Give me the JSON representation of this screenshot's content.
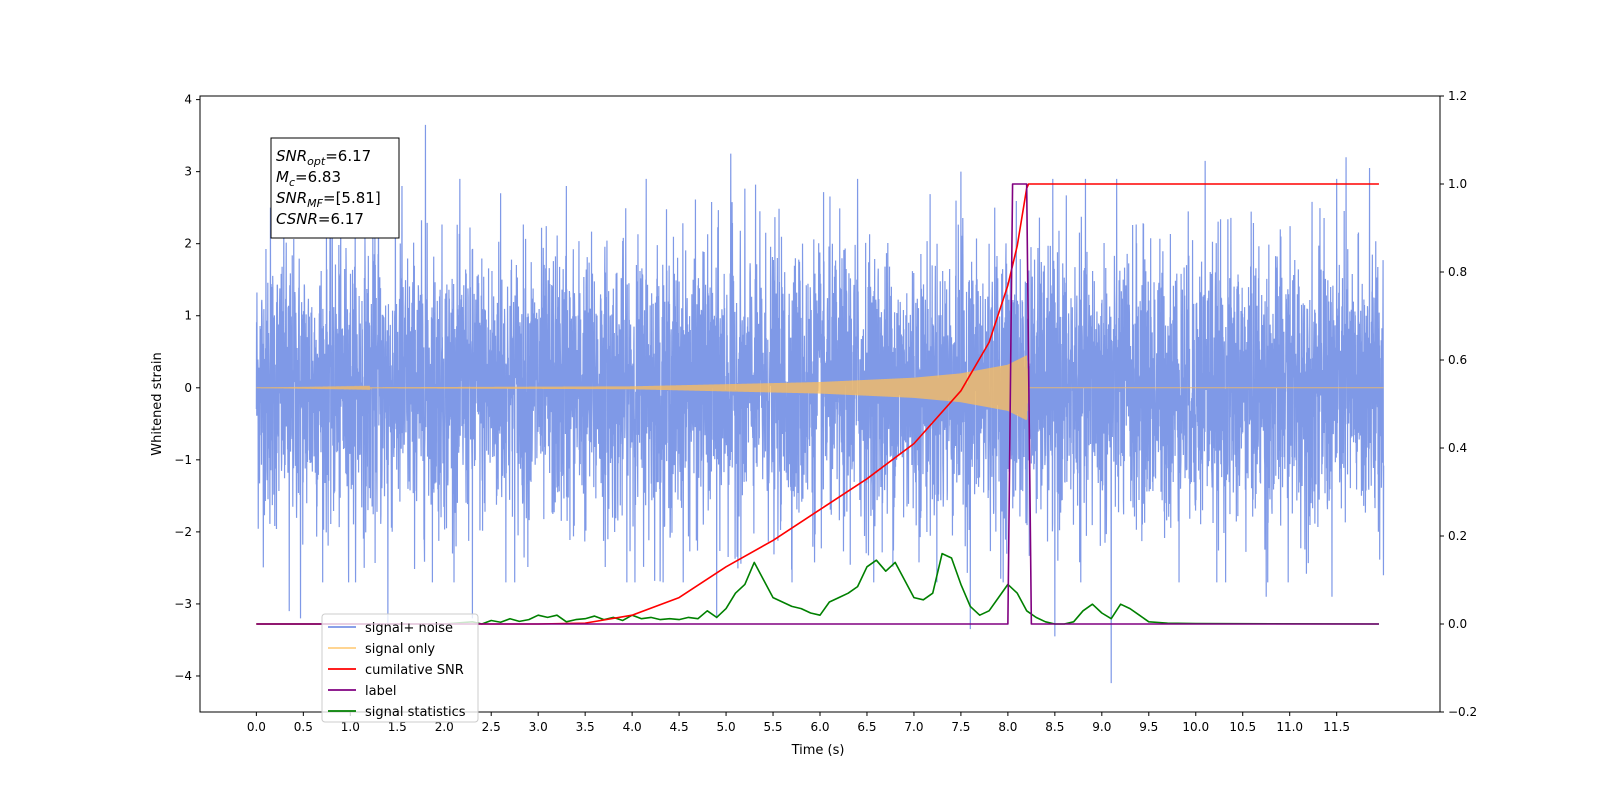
{
  "chart_data": {
    "type": "line",
    "xlabel": "Time (s)",
    "ylabel": "Whitened strain",
    "xlim": [
      -0.6,
      12.6
    ],
    "ylim": [
      -4.5,
      4.05
    ],
    "ylim_right": [
      -0.2,
      1.2
    ],
    "x_ticks": [
      0.0,
      0.5,
      1.0,
      1.5,
      2.0,
      2.5,
      3.0,
      3.5,
      4.0,
      4.5,
      5.0,
      5.5,
      6.0,
      6.5,
      7.0,
      7.5,
      8.0,
      8.5,
      9.0,
      9.5,
      10.0,
      10.5,
      11.0,
      11.5
    ],
    "x_tick_labels": [
      "0.0",
      "0.5",
      "1.0",
      "1.5",
      "2.0",
      "2.5",
      "3.0",
      "3.5",
      "4.0",
      "4.5",
      "5.0",
      "5.5",
      "6.0",
      "6.5",
      "7.0",
      "7.5",
      "8.0",
      "8.5",
      "9.0",
      "9.5",
      "10.0",
      "10.5",
      "11.0",
      "11.5"
    ],
    "y_ticks": [
      -4,
      -3,
      -2,
      -1,
      0,
      1,
      2,
      3,
      4
    ],
    "y_tick_labels": [
      "−4",
      "−3",
      "−2",
      "−1",
      "0",
      "1",
      "2",
      "3",
      "4"
    ],
    "y2_ticks": [
      -0.2,
      0.0,
      0.2,
      0.4,
      0.6,
      0.8,
      1.0,
      1.2
    ],
    "y2_tick_labels": [
      "−0.2",
      "0.0",
      "0.2",
      "0.4",
      "0.6",
      "0.8",
      "1.0",
      "1.2"
    ],
    "grid": false,
    "legend_position": "lower-left",
    "annotation": {
      "lines": [
        {
          "sym": "SNR",
          "sub": "opt",
          "rest": "=6.17"
        },
        {
          "sym": "M",
          "sub": "c",
          "rest": "=6.83"
        },
        {
          "sym": "SNR",
          "sub": "MF",
          "rest": "=[5.81]"
        },
        {
          "sym": "CSNR",
          "sub": "",
          "rest": "=6.17"
        }
      ]
    },
    "series": [
      {
        "name": "signal+ noise",
        "color": "#7893e6",
        "axis": "left",
        "style": "noise",
        "x_range": [
          0.0,
          12.0
        ],
        "spikes": [
          {
            "x": 0.15,
            "y": 2.5
          },
          {
            "x": 0.35,
            "y": -3.1
          },
          {
            "x": 0.47,
            "y": -3.2
          },
          {
            "x": 1.3,
            "y": 3.0
          },
          {
            "x": 1.55,
            "y": 2.8
          },
          {
            "x": 1.8,
            "y": 3.65
          },
          {
            "x": 1.4,
            "y": -3.3
          },
          {
            "x": 2.3,
            "y": -3.2
          },
          {
            "x": 2.6,
            "y": 2.7
          },
          {
            "x": 3.3,
            "y": 2.8
          },
          {
            "x": 4.15,
            "y": 2.9
          },
          {
            "x": 4.9,
            "y": -3.2
          },
          {
            "x": 5.05,
            "y": 3.25
          },
          {
            "x": 6.4,
            "y": 2.9
          },
          {
            "x": 7.5,
            "y": 3.0
          },
          {
            "x": 7.6,
            "y": -3.35
          },
          {
            "x": 8.5,
            "y": -3.45
          },
          {
            "x": 9.1,
            "y": -4.1
          },
          {
            "x": 10.1,
            "y": 3.15
          },
          {
            "x": 10.75,
            "y": -2.9
          },
          {
            "x": 11.45,
            "y": -2.9
          },
          {
            "x": 11.6,
            "y": 3.2
          },
          {
            "x": 11.85,
            "y": 3.05
          }
        ]
      },
      {
        "name": "signal only",
        "color": "#ffbf5a",
        "axis": "left",
        "style": "chirp",
        "x": [
          0.0,
          4.0,
          5.0,
          6.0,
          7.0,
          7.5,
          8.0,
          8.2,
          8.22,
          12.0
        ],
        "amplitude": [
          0.0,
          0.02,
          0.05,
          0.08,
          0.14,
          0.2,
          0.32,
          0.45,
          0.0,
          0.0
        ]
      },
      {
        "name": "cumilative SNR",
        "color": "#ff0000",
        "axis": "right",
        "x": [
          0.0,
          3.0,
          3.5,
          4.0,
          4.5,
          5.0,
          5.5,
          6.0,
          6.5,
          7.0,
          7.5,
          7.8,
          8.0,
          8.1,
          8.2,
          8.22,
          11.95
        ],
        "y": [
          0.0,
          0.0,
          0.002,
          0.02,
          0.06,
          0.13,
          0.19,
          0.26,
          0.33,
          0.41,
          0.53,
          0.64,
          0.77,
          0.86,
          0.99,
          1.0,
          1.0
        ]
      },
      {
        "name": "label",
        "color": "#800080",
        "axis": "right",
        "x": [
          0.0,
          8.0,
          8.05,
          8.2,
          8.25,
          11.95
        ],
        "y": [
          0.0,
          0.0,
          1.0,
          1.0,
          0.0,
          0.0
        ]
      },
      {
        "name": "signal statistics",
        "color": "#008000",
        "axis": "right",
        "x": [
          0.0,
          2.0,
          2.3,
          2.4,
          2.5,
          2.6,
          2.7,
          2.8,
          2.9,
          3.0,
          3.1,
          3.2,
          3.3,
          3.4,
          3.5,
          3.6,
          3.7,
          3.8,
          3.9,
          4.0,
          4.1,
          4.2,
          4.3,
          4.4,
          4.5,
          4.6,
          4.7,
          4.8,
          4.9,
          5.0,
          5.1,
          5.2,
          5.3,
          5.4,
          5.5,
          5.6,
          5.7,
          5.8,
          5.9,
          6.0,
          6.1,
          6.2,
          6.3,
          6.4,
          6.5,
          6.6,
          6.7,
          6.8,
          6.9,
          7.0,
          7.1,
          7.2,
          7.3,
          7.4,
          7.5,
          7.6,
          7.7,
          7.8,
          7.9,
          8.0,
          8.1,
          8.2,
          8.3,
          8.4,
          8.5,
          8.6,
          8.7,
          8.8,
          8.9,
          9.0,
          9.1,
          9.2,
          9.3,
          9.4,
          9.5,
          9.7,
          10.0,
          11.95
        ],
        "y": [
          0.0,
          0.0,
          0.005,
          0.0,
          0.008,
          0.004,
          0.012,
          0.006,
          0.01,
          0.02,
          0.015,
          0.02,
          0.005,
          0.01,
          0.012,
          0.018,
          0.01,
          0.015,
          0.008,
          0.02,
          0.012,
          0.015,
          0.01,
          0.012,
          0.01,
          0.015,
          0.012,
          0.03,
          0.015,
          0.035,
          0.07,
          0.09,
          0.14,
          0.1,
          0.06,
          0.05,
          0.04,
          0.035,
          0.025,
          0.02,
          0.05,
          0.06,
          0.07,
          0.085,
          0.13,
          0.145,
          0.12,
          0.14,
          0.1,
          0.06,
          0.055,
          0.07,
          0.16,
          0.15,
          0.09,
          0.04,
          0.02,
          0.03,
          0.06,
          0.09,
          0.07,
          0.03,
          0.015,
          0.005,
          0.0,
          0.0,
          0.005,
          0.03,
          0.045,
          0.025,
          0.012,
          0.045,
          0.035,
          0.02,
          0.005,
          0.002,
          0.001,
          0.0
        ]
      }
    ]
  }
}
